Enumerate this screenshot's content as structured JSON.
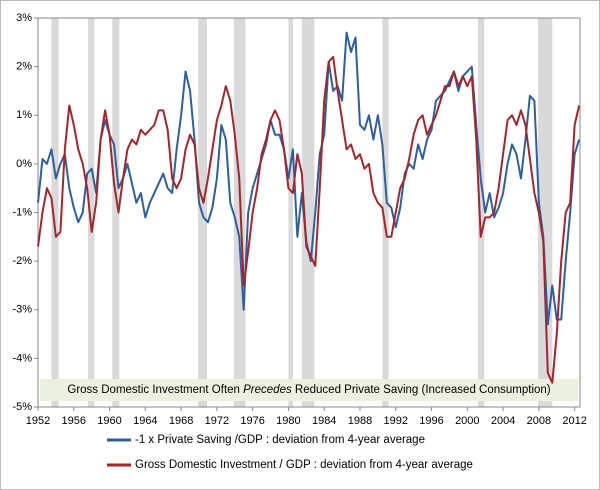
{
  "chart_data": {
    "type": "line",
    "annotation": [
      "Gross Domestic Investment Often ",
      "Precedes",
      " Reduced Private Saving (Increased Consumption)"
    ],
    "x": [
      1952,
      1952.5,
      1953,
      1953.5,
      1954,
      1954.5,
      1955,
      1955.5,
      1956,
      1956.5,
      1957,
      1957.5,
      1958,
      1958.5,
      1959,
      1959.5,
      1960,
      1960.5,
      1961,
      1961.5,
      1962,
      1962.5,
      1963,
      1963.5,
      1964,
      1964.5,
      1965,
      1965.5,
      1966,
      1966.5,
      1967,
      1967.5,
      1968,
      1968.5,
      1969,
      1969.5,
      1970,
      1970.5,
      1971,
      1971.5,
      1972,
      1972.5,
      1973,
      1973.5,
      1974,
      1974.5,
      1975,
      1975.5,
      1976,
      1976.5,
      1977,
      1977.5,
      1978,
      1978.5,
      1979,
      1979.5,
      1980,
      1980.5,
      1981,
      1981.5,
      1982,
      1982.5,
      1983,
      1983.5,
      1984,
      1984.5,
      1985,
      1985.5,
      1986,
      1986.5,
      1987,
      1987.5,
      1988,
      1988.5,
      1989,
      1989.5,
      1990,
      1990.5,
      1991,
      1991.5,
      1992,
      1992.5,
      1993,
      1993.5,
      1994,
      1994.5,
      1995,
      1995.5,
      1996,
      1996.5,
      1997,
      1997.5,
      1998,
      1998.5,
      1999,
      1999.5,
      2000,
      2000.5,
      2001,
      2001.5,
      2002,
      2002.5,
      2003,
      2003.5,
      2004,
      2004.5,
      2005,
      2005.5,
      2006,
      2006.5,
      2007,
      2007.5,
      2008,
      2008.5,
      2009,
      2009.5,
      2010,
      2010.5,
      2011,
      2011.5,
      2012,
      2012.5
    ],
    "series": [
      {
        "name": "-1 x Private Saving /GDP : deviation from 4-year average",
        "color": "#2e5f9e",
        "values": [
          -0.8,
          0.1,
          0.0,
          0.3,
          -0.3,
          0.0,
          0.2,
          -0.5,
          -0.9,
          -1.2,
          -1.0,
          -0.2,
          -0.1,
          -0.6,
          0.5,
          0.9,
          0.6,
          0.4,
          -0.5,
          -0.3,
          0.0,
          -0.4,
          -0.8,
          -0.6,
          -1.1,
          -0.8,
          -0.6,
          -0.4,
          -0.2,
          -0.5,
          -0.6,
          0.3,
          1.0,
          1.9,
          1.5,
          0.5,
          -0.8,
          -1.1,
          -1.2,
          -0.9,
          -0.3,
          0.8,
          0.5,
          -0.8,
          -1.1,
          -1.5,
          -3.0,
          -1.0,
          -0.5,
          -0.2,
          0.1,
          0.4,
          0.9,
          0.6,
          0.6,
          0.3,
          -0.3,
          0.3,
          -1.5,
          -0.6,
          -1.6,
          -2.0,
          -1.0,
          0.2,
          0.6,
          2.1,
          1.5,
          1.6,
          1.3,
          2.7,
          2.3,
          2.6,
          0.8,
          0.7,
          1.0,
          0.5,
          1.0,
          0.4,
          -0.8,
          -0.9,
          -1.3,
          -0.9,
          -0.2,
          0.0,
          -0.1,
          0.4,
          0.1,
          0.5,
          0.7,
          1.3,
          1.4,
          1.5,
          1.7,
          1.9,
          1.5,
          1.8,
          1.9,
          2.0,
          0.8,
          -0.3,
          -1.0,
          -0.6,
          -1.1,
          -0.9,
          -0.6,
          0.0,
          0.4,
          0.2,
          -0.3,
          0.5,
          1.4,
          1.3,
          -0.8,
          -1.5,
          -3.3,
          -2.5,
          -3.2,
          -3.2,
          -2.0,
          -1.0,
          0.2,
          0.5
        ]
      },
      {
        "name": "Gross Domestic Investment / GDP : deviation from 4-year average",
        "color": "#a3262a",
        "values": [
          -1.7,
          -1.0,
          -0.5,
          -0.7,
          -1.5,
          -1.4,
          0.3,
          1.2,
          0.8,
          0.3,
          0.0,
          -0.5,
          -1.4,
          -0.8,
          0.5,
          1.1,
          0.6,
          -0.4,
          -1.0,
          -0.3,
          0.3,
          0.5,
          0.4,
          0.7,
          0.6,
          0.7,
          0.8,
          1.1,
          1.1,
          0.7,
          -0.3,
          -0.5,
          -0.3,
          0.3,
          0.6,
          0.4,
          -0.5,
          -0.8,
          -0.3,
          0.3,
          0.9,
          1.2,
          1.6,
          1.3,
          0.6,
          -0.3,
          -2.5,
          -1.8,
          -1.0,
          -0.5,
          0.2,
          0.5,
          0.9,
          1.1,
          0.9,
          0.3,
          -0.5,
          -0.6,
          0.2,
          -0.2,
          -1.7,
          -1.9,
          -2.1,
          -0.5,
          1.3,
          2.1,
          2.2,
          1.5,
          0.9,
          0.3,
          0.4,
          0.1,
          0.2,
          -0.1,
          0.0,
          -0.6,
          -0.8,
          -0.9,
          -1.5,
          -1.5,
          -1.0,
          -0.5,
          -0.3,
          0.1,
          0.6,
          0.9,
          1.0,
          0.6,
          0.8,
          1.0,
          1.3,
          1.6,
          1.6,
          1.9,
          1.6,
          1.8,
          1.6,
          1.8,
          0.5,
          -1.5,
          -1.1,
          -1.1,
          -1.0,
          -0.5,
          0.2,
          0.9,
          1.0,
          0.8,
          1.1,
          0.8,
          0.1,
          -0.6,
          -1.0,
          -1.6,
          -4.3,
          -4.5,
          -3.5,
          -2.0,
          -1.0,
          -0.8,
          0.8,
          1.2
        ]
      }
    ],
    "recessions": [
      [
        1953.5,
        1954.3
      ],
      [
        1957.6,
        1958.3
      ],
      [
        1960.3,
        1961.1
      ],
      [
        1969.9,
        1970.9
      ],
      [
        1973.9,
        1975.2
      ],
      [
        1980.0,
        1980.5
      ],
      [
        1981.5,
        1982.9
      ],
      [
        1990.5,
        1991.2
      ],
      [
        2001.2,
        2001.9
      ],
      [
        2007.9,
        2009.5
      ]
    ],
    "recession_color": "#d9d9d9",
    "annotation_background": "#ebf1de",
    "xlim": [
      1952,
      2012.6
    ],
    "xticks": [
      1952,
      1956,
      1960,
      1964,
      1968,
      1972,
      1976,
      1980,
      1984,
      1988,
      1992,
      1996,
      2000,
      2004,
      2008,
      2012
    ],
    "ylim": [
      -5,
      3
    ],
    "yticks": [
      {
        "value": -5,
        "label": "-5%"
      },
      {
        "value": -4,
        "label": "-4%"
      },
      {
        "value": -3,
        "label": "-3%"
      },
      {
        "value": -2,
        "label": "-2%"
      },
      {
        "value": -1,
        "label": "-1%"
      },
      {
        "value": 0,
        "label": "0%"
      },
      {
        "value": 1,
        "label": "1%"
      },
      {
        "value": 2,
        "label": "2%"
      },
      {
        "value": 3,
        "label": "3%"
      }
    ],
    "grid": false
  }
}
